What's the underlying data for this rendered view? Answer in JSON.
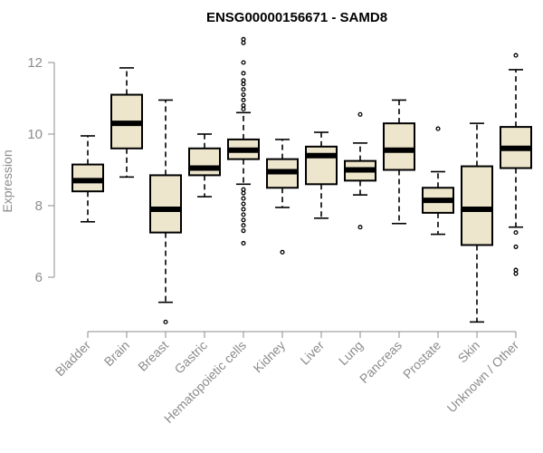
{
  "chart_data": {
    "type": "boxplot",
    "title": "ENSG00000156671 - SAMD8",
    "xlabel": "",
    "ylabel": "Expression",
    "ylim": [
      4.2,
      13.2
    ],
    "yticks": [
      6,
      8,
      10,
      12
    ],
    "box_fill": "#ede6cc",
    "series": [
      {
        "name": "Bladder",
        "whisker_low": 7.55,
        "q1": 8.4,
        "median": 8.7,
        "q3": 9.15,
        "whisker_high": 9.95,
        "outliers": []
      },
      {
        "name": "Brain",
        "whisker_low": 8.8,
        "q1": 9.6,
        "median": 10.3,
        "q3": 11.1,
        "whisker_high": 11.85,
        "outliers": []
      },
      {
        "name": "Breast",
        "whisker_low": 5.3,
        "q1": 7.25,
        "median": 7.9,
        "q3": 8.85,
        "whisker_high": 10.95,
        "outliers": [
          4.75
        ]
      },
      {
        "name": "Gastric",
        "whisker_low": 8.25,
        "q1": 8.85,
        "median": 9.05,
        "q3": 9.6,
        "whisker_high": 10.0,
        "outliers": []
      },
      {
        "name": "Hematopoietic cells",
        "whisker_low": 8.6,
        "q1": 9.3,
        "median": 9.55,
        "q3": 9.85,
        "whisker_high": 10.6,
        "outliers": [
          12.65,
          12.55,
          12.0,
          11.7,
          11.5,
          11.4,
          11.25,
          11.1,
          10.95,
          10.8,
          10.7,
          8.45,
          8.35,
          8.2,
          8.05,
          7.9,
          7.75,
          7.6,
          7.45,
          7.3,
          6.95
        ]
      },
      {
        "name": "Kidney",
        "whisker_low": 7.95,
        "q1": 8.5,
        "median": 8.95,
        "q3": 9.3,
        "whisker_high": 9.85,
        "outliers": [
          6.7
        ]
      },
      {
        "name": "Liver",
        "whisker_low": 7.65,
        "q1": 8.6,
        "median": 9.4,
        "q3": 9.65,
        "whisker_high": 10.05,
        "outliers": []
      },
      {
        "name": "Lung",
        "whisker_low": 8.3,
        "q1": 8.7,
        "median": 9.0,
        "q3": 9.25,
        "whisker_high": 9.75,
        "outliers": [
          10.55,
          7.4
        ]
      },
      {
        "name": "Pancreas",
        "whisker_low": 7.5,
        "q1": 9.0,
        "median": 9.55,
        "q3": 10.3,
        "whisker_high": 10.95,
        "outliers": []
      },
      {
        "name": "Prostate",
        "whisker_low": 7.2,
        "q1": 7.8,
        "median": 8.15,
        "q3": 8.5,
        "whisker_high": 8.95,
        "outliers": [
          10.15
        ]
      },
      {
        "name": "Skin",
        "whisker_low": 4.75,
        "q1": 6.9,
        "median": 7.9,
        "q3": 9.1,
        "whisker_high": 10.3,
        "outliers": []
      },
      {
        "name": "Unknown / Other",
        "whisker_low": 7.4,
        "q1": 9.05,
        "median": 9.6,
        "q3": 10.2,
        "whisker_high": 11.8,
        "outliers": [
          12.2,
          7.25,
          6.85,
          6.2,
          6.1
        ]
      }
    ]
  }
}
